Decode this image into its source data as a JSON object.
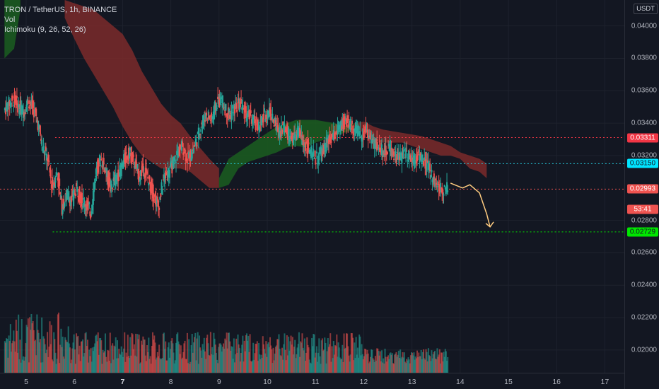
{
  "legend": {
    "symbol": "TRON / TetherUS, 1h, BINANCE",
    "volume": "Vol",
    "ichimoku": "Ichimoku (9, 26, 52, 26)"
  },
  "axis": {
    "unit": "USDT",
    "ticks": [
      "0.04000",
      "0.03800",
      "0.03600",
      "0.03400",
      "0.03200",
      "0.02800",
      "0.02600",
      "0.02400",
      "0.02200",
      "0.02000"
    ],
    "tick_values": [
      0.04,
      0.038,
      0.036,
      0.034,
      0.032,
      0.028,
      0.026,
      0.024,
      0.022,
      0.02
    ],
    "x_labels": [
      "5",
      "6",
      "7",
      "8",
      "9",
      "10",
      "11",
      "12",
      "13",
      "14",
      "15",
      "16",
      "17"
    ],
    "x_bold": [
      false,
      false,
      true,
      false,
      false,
      false,
      false,
      false,
      false,
      false,
      false,
      false,
      false
    ],
    "ylim": [
      0.0186,
      0.0416
    ]
  },
  "price_tags": [
    {
      "label": "0.03311",
      "value": 0.03311,
      "bg": "#f23645",
      "fg": "#ffffff"
    },
    {
      "label": "0.03150",
      "value": 0.0315,
      "bg": "#00e5ff",
      "fg": "#131722"
    },
    {
      "label": "0.02993",
      "value": 0.02993,
      "bg": "#ef5350",
      "fg": "#ffffff"
    },
    {
      "label": "53:41",
      "value": 0.0287,
      "bg": "#ef5350",
      "fg": "#ffffff"
    },
    {
      "label": "0.02729",
      "value": 0.02729,
      "bg": "#00e600",
      "fg": "#131722"
    }
  ],
  "hlines": [
    {
      "value": 0.03311,
      "color": "#f23645",
      "style": "dotted",
      "from_day": 5.6
    },
    {
      "value": 0.0315,
      "color": "#26c6da",
      "style": "dotted",
      "from_day": 5.35
    },
    {
      "value": 0.02729,
      "color": "#00e600",
      "style": "dotted",
      "from_day": 5.55
    },
    {
      "value": 0.02993,
      "color": "#ef5350",
      "style": "dotted",
      "from_day": 4.5
    }
  ],
  "colors": {
    "up": "#26a69a",
    "down": "#ef5350",
    "cloud_bull": "#1b5e20",
    "cloud_bear": "#7b2a2a",
    "projection": "#ffcc80",
    "grid": "#1e222d"
  },
  "chart_data": {
    "type": "candlestick",
    "title": "TRON / TetherUS, 1h, BINANCE",
    "x_unit": "day of month",
    "close_path": [
      [
        4.55,
        0.0348
      ],
      [
        4.65,
        0.0352
      ],
      [
        4.75,
        0.0355
      ],
      [
        4.85,
        0.035
      ],
      [
        4.95,
        0.0347
      ],
      [
        5.05,
        0.0354
      ],
      [
        5.15,
        0.0349
      ],
      [
        5.25,
        0.034
      ],
      [
        5.35,
        0.0325
      ],
      [
        5.45,
        0.0318
      ],
      [
        5.55,
        0.03
      ],
      [
        5.65,
        0.031
      ],
      [
        5.75,
        0.0288
      ],
      [
        5.85,
        0.0296
      ],
      [
        5.95,
        0.0292
      ],
      [
        6.05,
        0.03
      ],
      [
        6.15,
        0.0293
      ],
      [
        6.25,
        0.029
      ],
      [
        6.35,
        0.0285
      ],
      [
        6.45,
        0.031
      ],
      [
        6.55,
        0.0318
      ],
      [
        6.65,
        0.0312
      ],
      [
        6.75,
        0.03
      ],
      [
        6.85,
        0.0305
      ],
      [
        6.95,
        0.031
      ],
      [
        7.05,
        0.0318
      ],
      [
        7.15,
        0.0322
      ],
      [
        7.25,
        0.0315
      ],
      [
        7.35,
        0.0308
      ],
      [
        7.45,
        0.0312
      ],
      [
        7.55,
        0.0304
      ],
      [
        7.65,
        0.0296
      ],
      [
        7.75,
        0.0288
      ],
      [
        7.85,
        0.0305
      ],
      [
        7.95,
        0.031
      ],
      [
        8.05,
        0.0314
      ],
      [
        8.15,
        0.0322
      ],
      [
        8.25,
        0.0326
      ],
      [
        8.35,
        0.0318
      ],
      [
        8.45,
        0.0322
      ],
      [
        8.55,
        0.033
      ],
      [
        8.65,
        0.034
      ],
      [
        8.75,
        0.0346
      ],
      [
        8.85,
        0.0342
      ],
      [
        8.95,
        0.0352
      ],
      [
        9.05,
        0.0355
      ],
      [
        9.15,
        0.0348
      ],
      [
        9.25,
        0.0345
      ],
      [
        9.35,
        0.035
      ],
      [
        9.45,
        0.0352
      ],
      [
        9.55,
        0.0346
      ],
      [
        9.65,
        0.0344
      ],
      [
        9.75,
        0.034
      ],
      [
        9.85,
        0.0338
      ],
      [
        9.95,
        0.0345
      ],
      [
        10.05,
        0.0348
      ],
      [
        10.15,
        0.034
      ],
      [
        10.25,
        0.0335
      ],
      [
        10.35,
        0.0338
      ],
      [
        10.45,
        0.0333
      ],
      [
        10.55,
        0.033
      ],
      [
        10.65,
        0.0335
      ],
      [
        10.75,
        0.0328
      ],
      [
        10.85,
        0.0325
      ],
      [
        10.95,
        0.032
      ],
      [
        11.05,
        0.0318
      ],
      [
        11.15,
        0.0322
      ],
      [
        11.25,
        0.0328
      ],
      [
        11.35,
        0.033
      ],
      [
        11.45,
        0.0335
      ],
      [
        11.55,
        0.0338
      ],
      [
        11.65,
        0.0342
      ],
      [
        11.75,
        0.0338
      ],
      [
        11.85,
        0.0335
      ],
      [
        11.95,
        0.0333
      ],
      [
        12.05,
        0.0336
      ],
      [
        12.15,
        0.033
      ],
      [
        12.25,
        0.0327
      ],
      [
        12.35,
        0.0325
      ],
      [
        12.45,
        0.0322
      ],
      [
        12.55,
        0.0325
      ],
      [
        12.65,
        0.032
      ],
      [
        12.75,
        0.0318
      ],
      [
        12.85,
        0.0322
      ],
      [
        12.95,
        0.032
      ],
      [
        13.05,
        0.0318
      ],
      [
        13.15,
        0.032
      ],
      [
        13.25,
        0.0316
      ],
      [
        13.35,
        0.0312
      ],
      [
        13.45,
        0.0306
      ],
      [
        13.55,
        0.03
      ],
      [
        13.65,
        0.0299
      ],
      [
        13.75,
        0.02993
      ]
    ],
    "volume_peak": 0.63,
    "ichimoku_cloud": [
      {
        "bias": "bull",
        "points": [
          [
            4.55,
            0.0416,
            0.038
          ],
          [
            4.75,
            0.0416,
            0.0386
          ],
          [
            4.88,
            0.0416,
            0.041
          ]
        ]
      },
      {
        "bias": "bear",
        "points": [
          [
            5.8,
            0.0416,
            0.0405
          ],
          [
            6.0,
            0.0414,
            0.0392
          ],
          [
            6.2,
            0.0412,
            0.038
          ],
          [
            6.4,
            0.041,
            0.037
          ],
          [
            6.6,
            0.0405,
            0.036
          ],
          [
            6.8,
            0.04,
            0.035
          ],
          [
            7.0,
            0.0395,
            0.0338
          ],
          [
            7.2,
            0.0385,
            0.0328
          ],
          [
            7.4,
            0.0372,
            0.032
          ],
          [
            7.6,
            0.0362,
            0.0316
          ],
          [
            7.8,
            0.0352,
            0.0312
          ],
          [
            8.0,
            0.0345,
            0.0312
          ],
          [
            8.2,
            0.034,
            0.0312
          ],
          [
            8.4,
            0.0332,
            0.031
          ],
          [
            8.6,
            0.0325,
            0.0305
          ],
          [
            8.8,
            0.0318,
            0.03
          ],
          [
            9.0,
            0.0312,
            0.03
          ]
        ]
      },
      {
        "bias": "bull",
        "points": [
          [
            9.0,
            0.0306,
            0.03
          ],
          [
            9.2,
            0.0318,
            0.0302
          ],
          [
            9.4,
            0.0322,
            0.0312
          ],
          [
            9.6,
            0.0326,
            0.0316
          ],
          [
            9.8,
            0.033,
            0.0318
          ],
          [
            10.0,
            0.0334,
            0.032
          ],
          [
            10.2,
            0.0338,
            0.0322
          ],
          [
            10.4,
            0.034,
            0.0325
          ],
          [
            10.6,
            0.0342,
            0.0326
          ],
          [
            10.8,
            0.0342,
            0.0325
          ],
          [
            11.0,
            0.0342,
            0.0328
          ],
          [
            11.2,
            0.0341,
            0.033
          ],
          [
            11.4,
            0.034,
            0.0332
          ],
          [
            11.6,
            0.0338,
            0.0334
          ],
          [
            11.8,
            0.034,
            0.0336
          ]
        ]
      },
      {
        "bias": "bear",
        "points": [
          [
            11.8,
            0.034,
            0.0338
          ],
          [
            12.0,
            0.0341,
            0.0334
          ],
          [
            12.2,
            0.0338,
            0.033
          ],
          [
            12.4,
            0.0336,
            0.0328
          ],
          [
            12.6,
            0.0335,
            0.0328
          ],
          [
            12.8,
            0.0334,
            0.0328
          ],
          [
            13.0,
            0.0333,
            0.0326
          ],
          [
            13.2,
            0.0332,
            0.0324
          ],
          [
            13.4,
            0.033,
            0.0322
          ],
          [
            13.6,
            0.0328,
            0.032
          ],
          [
            13.8,
            0.0326,
            0.032
          ],
          [
            14.0,
            0.0322,
            0.0318
          ],
          [
            14.2,
            0.032,
            0.0312
          ],
          [
            14.4,
            0.0318,
            0.031
          ],
          [
            14.55,
            0.0315,
            0.0306
          ]
        ]
      }
    ],
    "projection": [
      [
        13.8,
        0.0303
      ],
      [
        14.05,
        0.03
      ],
      [
        14.2,
        0.0302
      ],
      [
        14.4,
        0.0297
      ],
      [
        14.55,
        0.0284
      ],
      [
        14.62,
        0.0276
      ]
    ]
  }
}
